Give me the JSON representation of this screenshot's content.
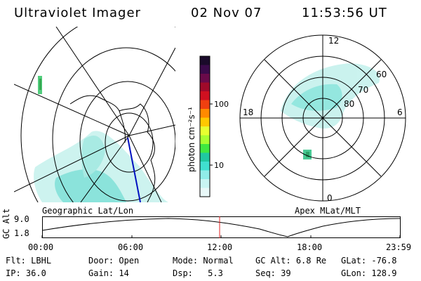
{
  "header": {
    "title": "Ultraviolet Imager",
    "date": "02 Nov 07",
    "time": "11:53:56 UT"
  },
  "geo_panel": {
    "label": "Geographic Lat/Lon"
  },
  "apex_panel": {
    "label": "Apex MLat/MLT",
    "mlt_labels": {
      "top": "12",
      "bottom": "0",
      "left": "18",
      "right": "6"
    },
    "lat_labels": [
      "60",
      "70",
      "80"
    ]
  },
  "colorbar": {
    "unit_label": "photon cm⁻²s⁻¹",
    "ticks": [
      "100",
      "10"
    ],
    "colors": [
      "#1a0a2a",
      "#3a0a4a",
      "#6a0a4a",
      "#a00a2a",
      "#d01020",
      "#f04010",
      "#ff8a00",
      "#ffc800",
      "#e8ff30",
      "#a8ff30",
      "#40e840",
      "#20c8a0",
      "#40e0d0",
      "#90ece8",
      "#c8f4f2",
      "#e8f8f8"
    ]
  },
  "altitude_plot": {
    "ylabel": "GC Alt",
    "y_ticks": [
      "9.0",
      "1.8"
    ],
    "x_ticks": [
      "00:00",
      "06:00",
      "12:00",
      "18:00",
      "23:59"
    ],
    "current_marker_color": "#e02020"
  },
  "info": {
    "flt": {
      "label": "Flt:",
      "value": "LBHL"
    },
    "ip": {
      "label": "IP:",
      "value": "36.0"
    },
    "door": {
      "label": "Door:",
      "value": "Open"
    },
    "gain": {
      "label": "Gain:",
      "value": "14"
    },
    "mode": {
      "label": "Mode:",
      "value": "Normal"
    },
    "dsp": {
      "label": "Dsp:",
      "value": "5.3"
    },
    "gcalt": {
      "label": "GC Alt:",
      "value": "6.8 Re"
    },
    "seq": {
      "label": "Seq:",
      "value": "39"
    },
    "glat": {
      "label": "GLat:",
      "value": "-76.8"
    },
    "glon": {
      "label": "GLon:",
      "value": "128.9"
    }
  }
}
